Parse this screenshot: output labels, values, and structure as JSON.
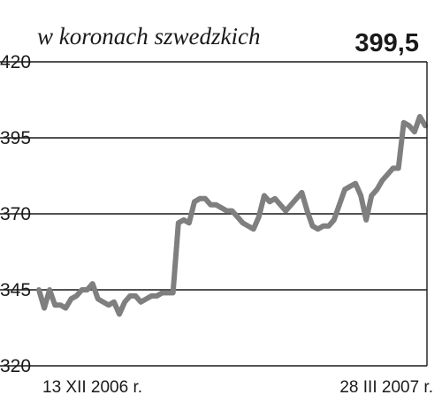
{
  "chart_data": {
    "type": "line",
    "title": "w koronach szwedzkich",
    "latest_value": "399,5",
    "ylim": [
      320,
      420
    ],
    "yticks": [
      420,
      395,
      370,
      345,
      320
    ],
    "x_start_label": "13 XII 2006 r.",
    "x_end_label": "28 III 2007 r.",
    "grid": true,
    "line_color": "#7f7f7f",
    "series": [
      {
        "values": [
          345,
          339,
          345,
          340,
          340,
          339,
          342,
          343,
          345,
          345,
          347,
          342,
          341,
          340,
          341,
          337,
          341,
          343,
          343,
          341,
          342,
          343,
          343,
          344,
          344,
          344,
          367,
          368,
          367,
          374,
          375,
          375,
          373,
          373,
          372,
          371,
          371,
          369,
          367,
          366,
          365,
          369,
          376,
          374,
          375,
          373,
          371,
          373,
          375,
          377,
          371,
          366,
          365,
          366,
          366,
          368,
          373,
          378,
          379,
          380,
          376,
          368,
          376,
          378,
          381,
          383,
          385,
          385,
          400,
          399,
          397,
          402,
          399
        ]
      }
    ]
  }
}
